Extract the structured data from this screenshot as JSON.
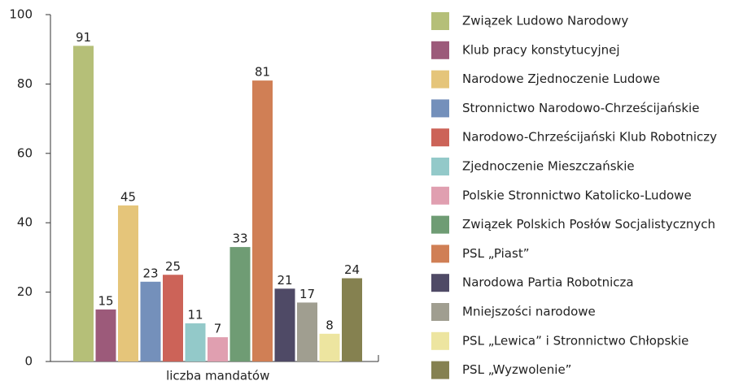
{
  "chart_data": {
    "type": "bar",
    "categories": [
      "liczba mandatów"
    ],
    "series": [
      {
        "name": "Związek Ludowo Narodowy",
        "color": "#b5bf78",
        "values": [
          91
        ]
      },
      {
        "name": "Klub pracy konstytucyjnej",
        "color": "#9c5a7a",
        "values": [
          15
        ]
      },
      {
        "name": "Narodowe Zjednoczenie Ludowe",
        "color": "#e5c57a",
        "values": [
          45
        ]
      },
      {
        "name": "Stronnictwo Narodowo-Chrześcijańskie",
        "color": "#7490bb",
        "values": [
          23
        ]
      },
      {
        "name": "Narodowo-Chrześcijański Klub Robotniczy",
        "color": "#cc6358",
        "values": [
          25
        ]
      },
      {
        "name": "Zjednoczenie Mieszczańskie",
        "color": "#93c9c9",
        "values": [
          11
        ]
      },
      {
        "name": "Polskie Stronnictwo Katolicko-Ludowe",
        "color": "#e09fb0",
        "values": [
          7
        ]
      },
      {
        "name": "Związek Polskich Posłów Socjalistycznych",
        "color": "#6f9c74",
        "values": [
          33
        ]
      },
      {
        "name": "PSL „Piast”",
        "color": "#d07f55",
        "values": [
          81
        ]
      },
      {
        "name": "Narodowa Partia Robotnicza",
        "color": "#4f4a66",
        "values": [
          21
        ]
      },
      {
        "name": "Mniejszości narodowe",
        "color": "#a09e90",
        "values": [
          17
        ]
      },
      {
        "name": "PSL „Lewica” i Stronnictwo Chłopskie",
        "color": "#ede5a0",
        "values": [
          8
        ]
      },
      {
        "name": "PSL „Wyzwolenie”",
        "color": "#858150",
        "values": [
          24
        ]
      }
    ],
    "ylim": [
      0,
      100
    ],
    "yticks": [
      0,
      20,
      40,
      60,
      80,
      100
    ],
    "legend": "right"
  }
}
